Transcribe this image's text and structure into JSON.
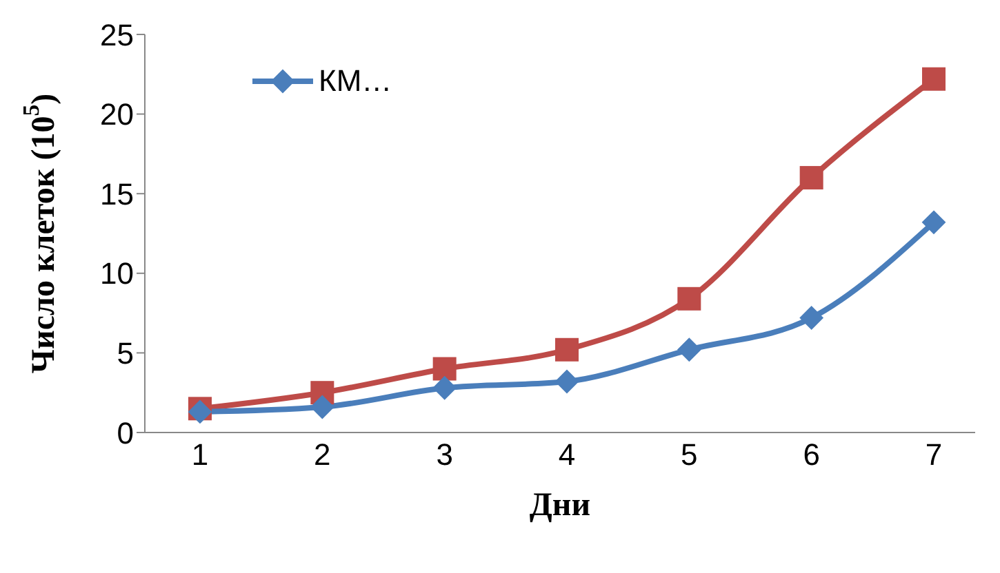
{
  "chart_data": {
    "type": "line",
    "xlabel": "Дни",
    "ylabel": "Число клеток (10$^{5}$)",
    "categories": [
      "1",
      "2",
      "3",
      "4",
      "5",
      "6",
      "7"
    ],
    "series": [
      {
        "name": "КМ…",
        "color": "#4a7ebb",
        "marker": "diamond",
        "values": [
          1.3,
          1.6,
          2.8,
          3.2,
          5.2,
          7.2,
          13.2
        ]
      },
      {
        "color": "#be4b48",
        "marker": "square",
        "values": [
          1.5,
          2.5,
          4.0,
          5.2,
          8.4,
          16.0,
          22.2
        ]
      }
    ],
    "ylim": [
      0,
      25
    ],
    "yticks": [
      0,
      5,
      10,
      15,
      20,
      25
    ],
    "grid": false,
    "legend": "top left"
  }
}
